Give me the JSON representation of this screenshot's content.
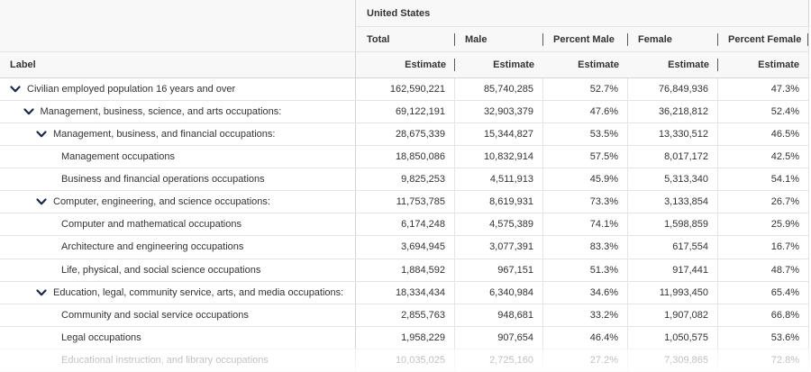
{
  "table": {
    "group_header": "United States",
    "label_header": "Label",
    "columns": [
      {
        "label": "Total",
        "sublabel": "Estimate"
      },
      {
        "label": "Male",
        "sublabel": "Estimate"
      },
      {
        "label": "Percent Male",
        "sublabel": "Estimate"
      },
      {
        "label": "Female",
        "sublabel": "Estimate"
      },
      {
        "label": "Percent Female",
        "sublabel": "Estimate"
      }
    ],
    "rows": [
      {
        "label": "Civilian employed population 16 years and over",
        "level": 0,
        "expanded": true,
        "values": [
          "162,590,221",
          "85,740,285",
          "52.7%",
          "76,849,936",
          "47.3%"
        ]
      },
      {
        "label": "Management, business, science, and arts occupations:",
        "level": 1,
        "expanded": true,
        "values": [
          "69,122,191",
          "32,903,379",
          "47.6%",
          "36,218,812",
          "52.4%"
        ]
      },
      {
        "label": "Management, business, and financial occupations:",
        "level": 2,
        "expanded": true,
        "values": [
          "28,675,339",
          "15,344,827",
          "53.5%",
          "13,330,512",
          "46.5%"
        ]
      },
      {
        "label": "Management occupations",
        "level": 3,
        "values": [
          "18,850,086",
          "10,832,914",
          "57.5%",
          "8,017,172",
          "42.5%"
        ]
      },
      {
        "label": "Business and financial operations occupations",
        "level": 3,
        "values": [
          "9,825,253",
          "4,511,913",
          "45.9%",
          "5,313,340",
          "54.1%"
        ]
      },
      {
        "label": "Computer, engineering, and science occupations:",
        "level": 2,
        "expanded": true,
        "values": [
          "11,753,785",
          "8,619,931",
          "73.3%",
          "3,133,854",
          "26.7%"
        ]
      },
      {
        "label": "Computer and mathematical occupations",
        "level": 3,
        "values": [
          "6,174,248",
          "4,575,389",
          "74.1%",
          "1,598,859",
          "25.9%"
        ]
      },
      {
        "label": "Architecture and engineering occupations",
        "level": 3,
        "values": [
          "3,694,945",
          "3,077,391",
          "83.3%",
          "617,554",
          "16.7%"
        ]
      },
      {
        "label": "Life, physical, and social science occupations",
        "level": 3,
        "values": [
          "1,884,592",
          "967,151",
          "51.3%",
          "917,441",
          "48.7%"
        ]
      },
      {
        "label": "Education, legal, community service, arts, and media occupations:",
        "level": 2,
        "expanded": true,
        "values": [
          "18,334,434",
          "6,340,984",
          "34.6%",
          "11,993,450",
          "65.4%"
        ]
      },
      {
        "label": "Community and social service occupations",
        "level": 3,
        "values": [
          "2,855,763",
          "948,681",
          "33.2%",
          "1,907,082",
          "66.8%"
        ]
      },
      {
        "label": "Legal occupations",
        "level": 3,
        "values": [
          "1,958,229",
          "907,654",
          "46.4%",
          "1,050,575",
          "53.6%"
        ]
      },
      {
        "label": "Educational instruction, and library occupations",
        "level": 3,
        "values": [
          "10,035,025",
          "2,725,160",
          "27.2%",
          "7,309,865",
          "72.8%"
        ]
      }
    ]
  },
  "icons": {
    "expanded_row": "chevron-down-icon"
  },
  "colors": {
    "header_bg": "#f8f8f8",
    "text": "#333333",
    "chevron": "#1b2a45",
    "grid_line": "#e4e4e4",
    "grid_line_strong": "#d4d4d4",
    "handle": "#5a5a5a"
  }
}
